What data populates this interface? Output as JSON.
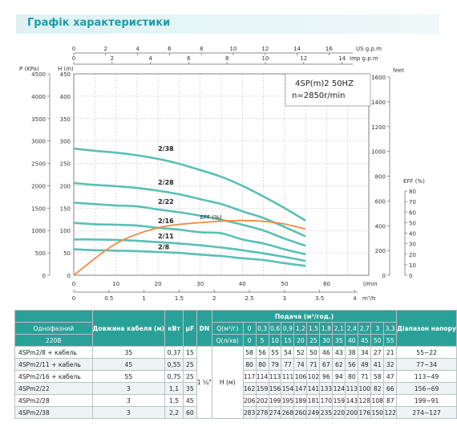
{
  "page_title": "Графік характеристики",
  "chart_data": {
    "type": "line",
    "model_label": "4SP(m)2  50HZ",
    "speed_label": "n=2850r/min",
    "top_axes": {
      "us_label": "US g.p.m",
      "us_ticks": [
        "0",
        "2",
        "4",
        "6",
        "8",
        "10",
        "12",
        "14",
        "16"
      ],
      "imp_label": "Imp g.p.m",
      "imp_ticks": [
        "0",
        "2",
        "4",
        "6",
        "8",
        "10",
        "12",
        "14"
      ]
    },
    "left_axes": {
      "p_label": "P (KPa)",
      "p_ticks": [
        "0",
        "500",
        "1000",
        "1500",
        "2000",
        "2500",
        "3000",
        "3500",
        "4000",
        "4500"
      ],
      "h_label": "H (m)",
      "h_ticks": [
        "0",
        "50",
        "100",
        "150",
        "200",
        "250",
        "300",
        "350",
        "400",
        "450"
      ]
    },
    "right_axes": {
      "feet_label": "feet",
      "feet_ticks": [
        "0",
        "200",
        "400",
        "600",
        "800",
        "1000",
        "1200",
        "1400",
        "1600"
      ],
      "eff_label": "EFF (%)",
      "eff_ticks": [
        "0",
        "10",
        "20",
        "30",
        "40",
        "50",
        "60",
        "70",
        "80"
      ]
    },
    "bottom_axes": {
      "lmin_label": "l/min",
      "lmin_ticks": [
        "0",
        "10",
        "20",
        "30",
        "40",
        "50",
        "60"
      ],
      "m3h_label": "m³/h",
      "m3h_ticks": [
        "0",
        "0.5",
        "1",
        "1.5",
        "2",
        "2.5",
        "3",
        "3.5",
        "4"
      ]
    },
    "x_lmin": [
      0,
      5,
      10,
      15,
      20,
      25,
      30,
      35,
      40,
      45,
      50,
      55
    ],
    "series": [
      {
        "name": "2/38",
        "values": [
          283,
          278,
          274,
          268,
          260,
          249,
          235,
          220,
          200,
          176,
          150,
          122
        ]
      },
      {
        "name": "2/28",
        "values": [
          206,
          202,
          199,
          195,
          189,
          181,
          170,
          159,
          143,
          128,
          108,
          87
        ]
      },
      {
        "name": "2/22",
        "values": [
          162,
          159,
          156,
          154,
          147,
          141,
          133,
          124,
          113,
          100,
          82,
          66
        ]
      },
      {
        "name": "2/16",
        "values": [
          117,
          114,
          113,
          111,
          106,
          102,
          96,
          94,
          80,
          71,
          58,
          47
        ]
      },
      {
        "name": "2/11",
        "values": [
          80,
          80,
          79,
          77,
          74,
          71,
          67,
          62,
          56,
          49,
          41,
          32
        ]
      },
      {
        "name": "2/8",
        "values": [
          58,
          56,
          55,
          54,
          52,
          50,
          46,
          43,
          38,
          34,
          27,
          21
        ]
      }
    ],
    "efficiency": {
      "name": "EFF (%)",
      "x": [
        0,
        10,
        20,
        30,
        40,
        48,
        55
      ],
      "values": [
        0,
        30,
        45,
        50,
        52,
        50,
        44
      ]
    }
  },
  "table": {
    "header": {
      "col_model": "Однофазний",
      "col_model_sub": "220В",
      "col_cable": "Довжина кабеля (м)",
      "col_kw": "кВт",
      "col_uf": "µF",
      "col_dn": "DN",
      "col_flow": "Подача (м³/год.)",
      "q_m3h_label": "Q(м³/г)",
      "q_ls_label": "Q(л/хв)",
      "col_range": "Діапазон напору",
      "q_m3h": [
        "0",
        "0,3",
        "0,6",
        "0,9",
        "1,2",
        "1,5",
        "1,8",
        "2,1",
        "2,4",
        "2,7",
        "3",
        "3,3"
      ],
      "q_ls": [
        "0",
        "5",
        "10",
        "15",
        "20",
        "25",
        "30",
        "35",
        "40",
        "45",
        "50",
        "55"
      ]
    },
    "dn_value": "1 ¼\"",
    "h_label": "H (м)",
    "rows": [
      {
        "model": "4SPm2/8 + кабель",
        "cable": "35",
        "kw": "0,37",
        "uf": "15",
        "h": [
          "58",
          "56",
          "55",
          "54",
          "52",
          "50",
          "46",
          "43",
          "38",
          "34",
          "27",
          "21"
        ],
        "range": "55~22"
      },
      {
        "model": "4SPm2/11 + кабель",
        "cable": "45",
        "kw": "0,55",
        "uf": "25",
        "h": [
          "80",
          "80",
          "79",
          "77",
          "74",
          "71",
          "67",
          "62",
          "56",
          "49",
          "41",
          "32"
        ],
        "range": "77~34"
      },
      {
        "model": "4SPm2/16 + кабель",
        "cable": "55",
        "kw": "0,75",
        "uf": "25",
        "h": [
          "117",
          "114",
          "113",
          "111",
          "106",
          "102",
          "96",
          "94",
          "80",
          "71",
          "58",
          "47"
        ],
        "range": "113~49"
      },
      {
        "model": "4SPm2/22",
        "cable": "3",
        "kw": "1,1",
        "uf": "35",
        "h": [
          "162",
          "159",
          "156",
          "154",
          "147",
          "141",
          "133",
          "124",
          "113",
          "100",
          "82",
          "66"
        ],
        "range": "156~69"
      },
      {
        "model": "4SPm2/28",
        "cable": "3",
        "kw": "1,5",
        "uf": "45",
        "h": [
          "206",
          "202",
          "199",
          "195",
          "189",
          "181",
          "170",
          "159",
          "143",
          "128",
          "108",
          "87"
        ],
        "range": "199~91"
      },
      {
        "model": "4SPm2/38",
        "cable": "3",
        "kw": "2,2",
        "uf": "60",
        "h": [
          "283",
          "278",
          "274",
          "268",
          "260",
          "249",
          "235",
          "220",
          "200",
          "176",
          "150",
          "122"
        ],
        "range": "274~127"
      }
    ]
  },
  "colors": {
    "curve": "#5bbfb5",
    "efficiency": "#f08a45",
    "grid": "#b5b5b5",
    "table_header": "#2aa198"
  }
}
